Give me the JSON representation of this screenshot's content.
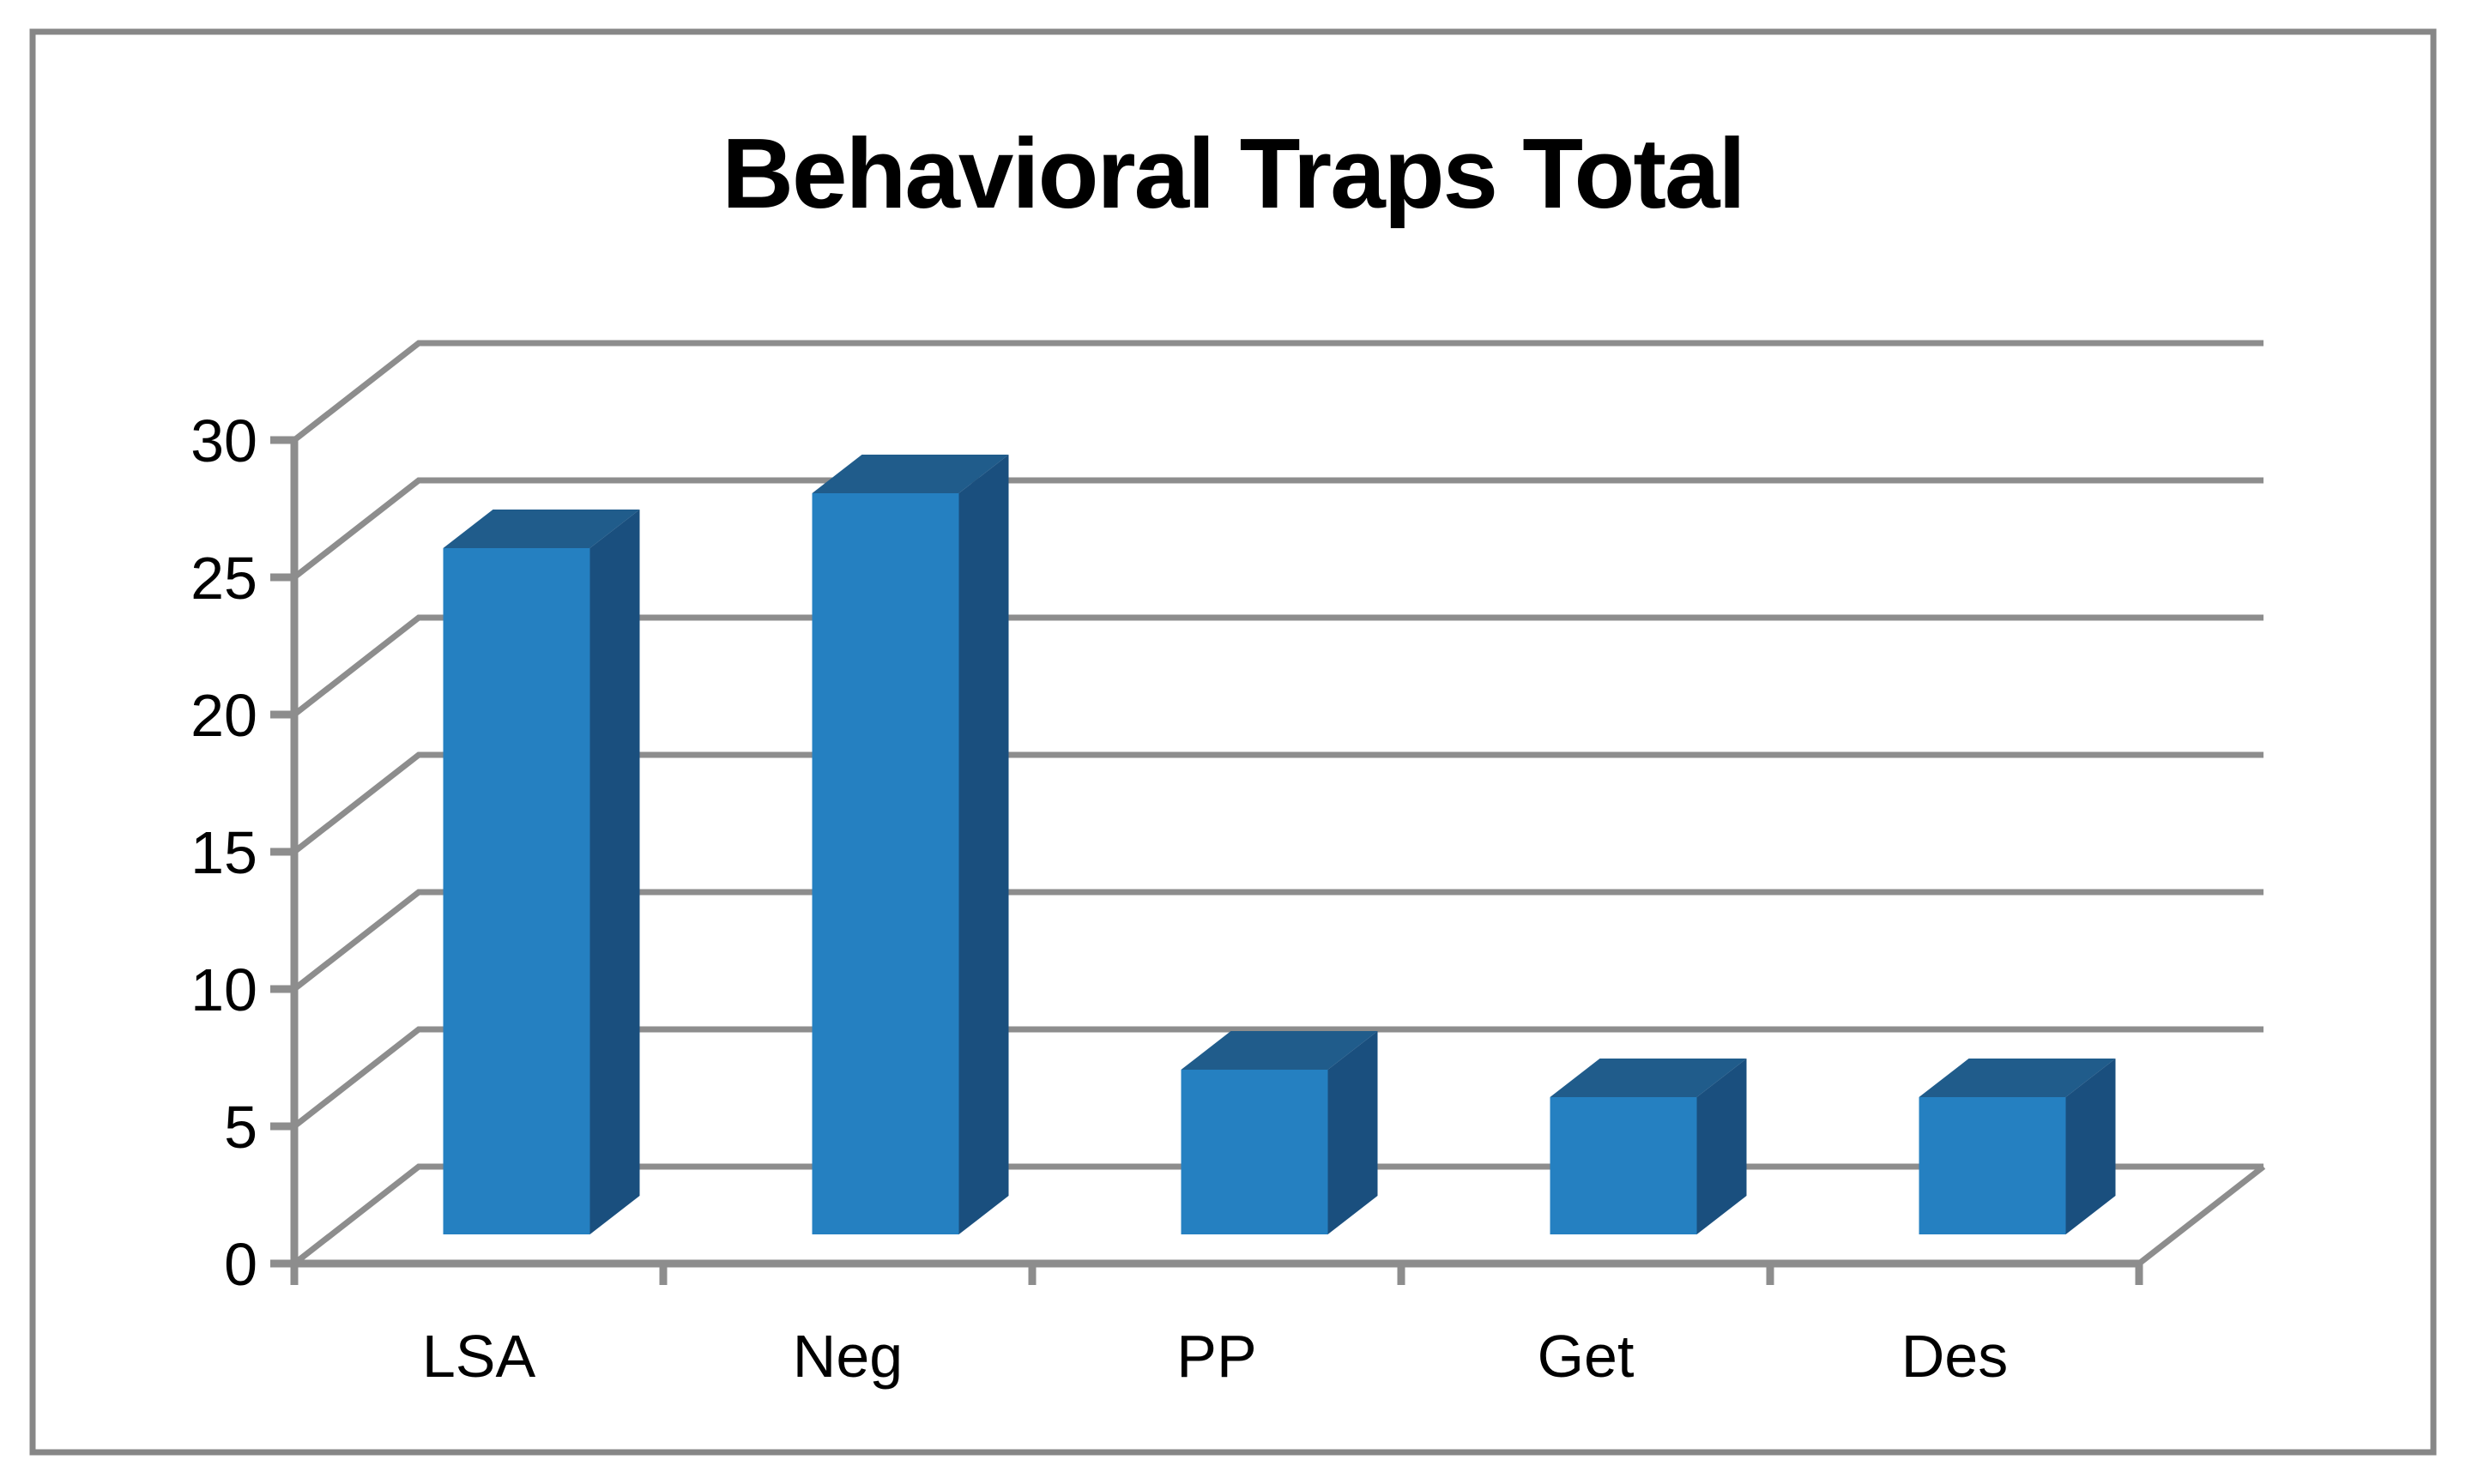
{
  "chart_data": {
    "type": "bar",
    "variant": "3d-column",
    "title": "Behavioral Traps Total",
    "categories": [
      "LSA",
      "Neg",
      "PP",
      "Get",
      "Des"
    ],
    "values": [
      25,
      27,
      6,
      5,
      5
    ],
    "xlabel": "",
    "ylabel": "",
    "y_ticks": [
      0,
      5,
      10,
      15,
      20,
      25,
      30
    ],
    "ylim": [
      0,
      30
    ],
    "grid": true,
    "legend": "none",
    "colors": {
      "bar_front": "#2580C1",
      "bar_top": "#205C8B",
      "bar_side": "#1A4F7E",
      "gridline": "#8D8D8D",
      "axis": "#8D8D8D",
      "text": "#000000",
      "frame_border": "#878787",
      "background": "#FFFFFF"
    }
  }
}
